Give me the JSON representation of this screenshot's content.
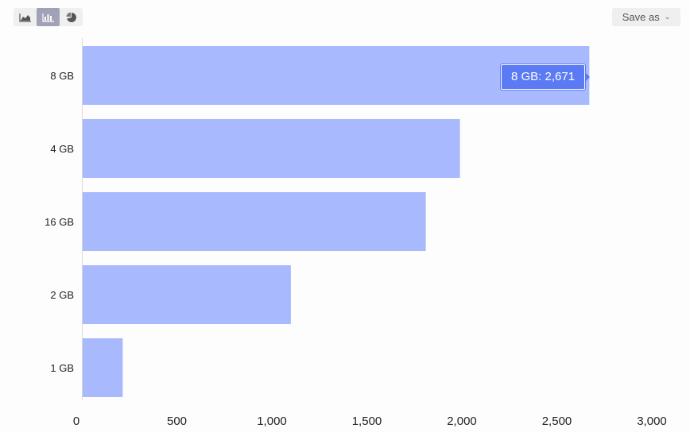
{
  "toolbar": {
    "chart_types": [
      {
        "name": "area-chart",
        "icon": "area-chart-icon",
        "active": false
      },
      {
        "name": "bar-chart",
        "icon": "bar-chart-icon",
        "active": true
      },
      {
        "name": "pie-chart",
        "icon": "pie-chart-icon",
        "active": false
      }
    ],
    "save_label": "Save as"
  },
  "tooltip": {
    "text": "8 GB: 2,671"
  },
  "colors": {
    "bar": "#a9b9fd",
    "tooltip": "#5b7bf5",
    "axis": "#d9d9d9"
  },
  "chart_data": {
    "type": "bar",
    "orientation": "horizontal",
    "categories": [
      "8 GB",
      "4 GB",
      "16 GB",
      "2 GB",
      "1 GB"
    ],
    "values": [
      2671,
      1990,
      1810,
      1100,
      215
    ],
    "xlim": [
      0,
      3000
    ],
    "xticks": [
      0,
      500,
      1000,
      1500,
      2000,
      2500,
      3000
    ],
    "xtick_labels": [
      "0",
      "500",
      "1,000",
      "1,500",
      "2,000",
      "2,500",
      "3,000"
    ],
    "title": "",
    "xlabel": "",
    "ylabel": "",
    "grid": false
  }
}
